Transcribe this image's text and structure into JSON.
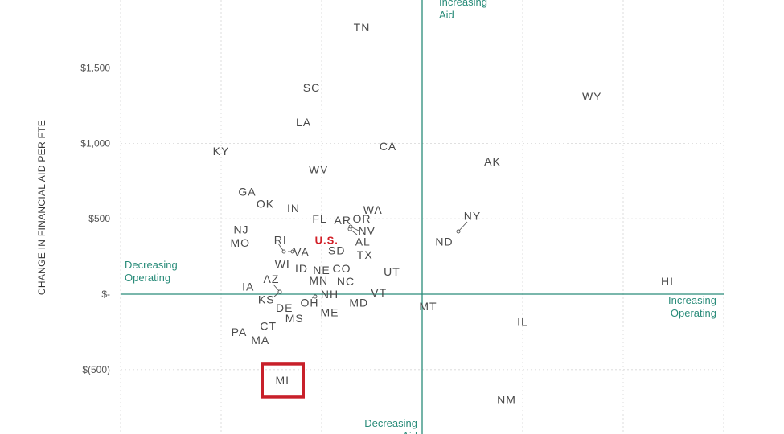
{
  "chart_data": {
    "type": "scatter",
    "ylabel": "CHANGE IN FINANCIAL AID PER FTE",
    "xlabel": "",
    "ylim": [
      -920,
      1950
    ],
    "xlim": [
      -3000,
      3000
    ],
    "y_ticks": [
      {
        "value": 1500,
        "label": "$1,500"
      },
      {
        "value": 1000,
        "label": "$1,000"
      },
      {
        "value": 500,
        "label": "$500"
      },
      {
        "value": 0,
        "label": "$-"
      },
      {
        "value": -500,
        "label": "$(500)"
      }
    ],
    "x_grid": [
      -3000,
      -2000,
      -1000,
      0,
      1000,
      2000,
      3000
    ],
    "grid": true,
    "quadrant_labels": {
      "top": [
        "Increasing",
        "Aid"
      ],
      "bottom": [
        "Decreasing",
        "Aid"
      ],
      "left": [
        "Decreasing",
        "Operating"
      ],
      "right": [
        "Increasing",
        "Operating"
      ]
    },
    "highlighted": [
      "U.S.",
      "MI"
    ],
    "points": [
      {
        "label": "TN",
        "x": -600,
        "y": 1770
      },
      {
        "label": "WY",
        "x": 1690,
        "y": 1310
      },
      {
        "label": "SC",
        "x": -1100,
        "y": 1370
      },
      {
        "label": "LA",
        "x": -1180,
        "y": 1140
      },
      {
        "label": "CA",
        "x": -340,
        "y": 980
      },
      {
        "label": "KY",
        "x": -2000,
        "y": 950
      },
      {
        "label": "AK",
        "x": 700,
        "y": 880
      },
      {
        "label": "WV",
        "x": -1030,
        "y": 830
      },
      {
        "label": "GA",
        "x": -1740,
        "y": 680
      },
      {
        "label": "OK",
        "x": -1560,
        "y": 600
      },
      {
        "label": "IN",
        "x": -1280,
        "y": 570
      },
      {
        "label": "WA",
        "x": -490,
        "y": 560
      },
      {
        "label": "NY",
        "x": 500,
        "y": 520
      },
      {
        "label": "FL",
        "x": -1020,
        "y": 500
      },
      {
        "label": "AR",
        "x": -790,
        "y": 490
      },
      {
        "label": "OR",
        "x": -600,
        "y": 500
      },
      {
        "label": "NJ",
        "x": -1800,
        "y": 430
      },
      {
        "label": "NV",
        "x": -550,
        "y": 420
      },
      {
        "label": "RI",
        "x": -1410,
        "y": 360
      },
      {
        "label": "U.S.",
        "x": -950,
        "y": 360
      },
      {
        "label": "AL",
        "x": -590,
        "y": 350
      },
      {
        "label": "ND",
        "x": 220,
        "y": 350
      },
      {
        "label": "MO",
        "x": -1810,
        "y": 340
      },
      {
        "label": "SD",
        "x": -850,
        "y": 290
      },
      {
        "label": "VA",
        "x": -1200,
        "y": 280
      },
      {
        "label": "TX",
        "x": -570,
        "y": 260
      },
      {
        "label": "WI",
        "x": -1390,
        "y": 200
      },
      {
        "label": "ID",
        "x": -1200,
        "y": 170
      },
      {
        "label": "NE",
        "x": -1000,
        "y": 160
      },
      {
        "label": "CO",
        "x": -800,
        "y": 170
      },
      {
        "label": "UT",
        "x": -300,
        "y": 150
      },
      {
        "label": "AZ",
        "x": -1500,
        "y": 100
      },
      {
        "label": "MN",
        "x": -1030,
        "y": 90
      },
      {
        "label": "NC",
        "x": -760,
        "y": 85
      },
      {
        "label": "HI",
        "x": 2440,
        "y": 85
      },
      {
        "label": "IA",
        "x": -1730,
        "y": 50
      },
      {
        "label": "NH",
        "x": -920,
        "y": 0
      },
      {
        "label": "VT",
        "x": -430,
        "y": 10
      },
      {
        "label": "KS",
        "x": -1550,
        "y": -35
      },
      {
        "label": "OH",
        "x": -1120,
        "y": -55
      },
      {
        "label": "MD",
        "x": -630,
        "y": -55
      },
      {
        "label": "MT",
        "x": 60,
        "y": -80
      },
      {
        "label": "DE",
        "x": -1370,
        "y": -90
      },
      {
        "label": "ME",
        "x": -920,
        "y": -120
      },
      {
        "label": "MS",
        "x": -1270,
        "y": -160
      },
      {
        "label": "IL",
        "x": 1000,
        "y": -185
      },
      {
        "label": "CT",
        "x": -1530,
        "y": -210
      },
      {
        "label": "PA",
        "x": -1820,
        "y": -250
      },
      {
        "label": "MA",
        "x": -1610,
        "y": -305
      },
      {
        "label": "MI",
        "x": -1390,
        "y": -570
      },
      {
        "label": "NM",
        "x": 840,
        "y": -700
      }
    ]
  }
}
